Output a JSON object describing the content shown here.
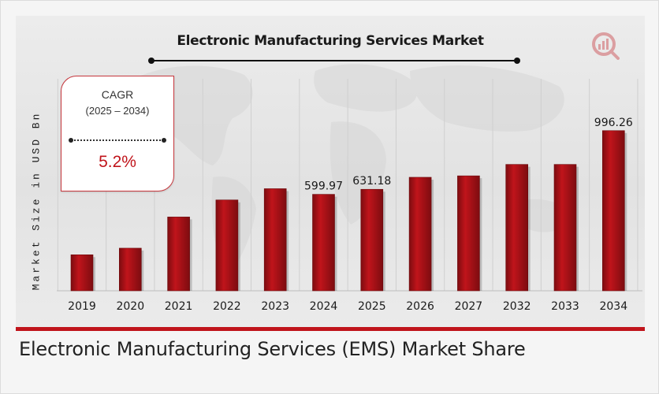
{
  "caption": "Electronic Manufacturing Services (EMS) Market Share",
  "cagr": {
    "label": "CAGR",
    "range": "(2025 – 2034)",
    "value": "5.2%"
  },
  "colors": {
    "bar": "#c0141b",
    "bar_dark": "#7d0c10",
    "accent": "#c0141b"
  },
  "chart_data": {
    "type": "bar",
    "title": "Electronic Manufacturing Services Market",
    "ylabel": "Market Size in USD Bn",
    "xlabel": "",
    "categories": [
      "2019",
      "2020",
      "2021",
      "2022",
      "2023",
      "2024",
      "2025",
      "2026",
      "2027",
      "2032",
      "2033",
      "2034"
    ],
    "values": [
      224,
      265,
      459,
      565,
      635,
      599.97,
      631.18,
      706,
      715,
      786,
      786,
      996.26
    ],
    "data_labels": [
      "",
      "",
      "",
      "",
      "",
      "599.97",
      "631.18",
      "",
      "",
      "",
      "",
      "996.26"
    ],
    "grid": true,
    "legend": "none"
  }
}
